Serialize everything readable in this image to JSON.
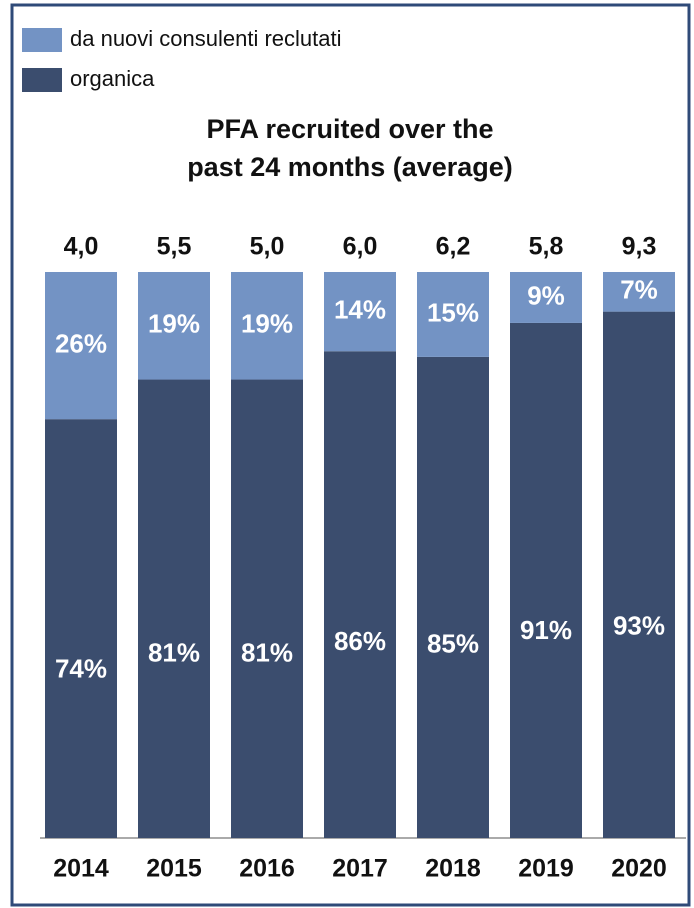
{
  "chart_data": {
    "type": "stacked_bar_100",
    "title": [
      "PFA recruited over the",
      "past 24 months (average)"
    ],
    "categories": [
      "2014",
      "2015",
      "2016",
      "2017",
      "2018",
      "2019",
      "2020"
    ],
    "total_labels": [
      "4,0",
      "5,5",
      "5,0",
      "6,0",
      "6,2",
      "5,8",
      "9,3"
    ],
    "ylim": [
      0,
      100
    ],
    "legend": "top-left",
    "series": [
      {
        "name": "organica",
        "color": "#3b4d6e",
        "values": [
          74,
          81,
          81,
          86,
          85,
          91,
          93
        ],
        "value_labels": [
          "74%",
          "81%",
          "81%",
          "86%",
          "85%",
          "91%",
          "93%"
        ]
      },
      {
        "name": "da nuovi consulenti reclutati",
        "color": "#7393c4",
        "values": [
          26,
          19,
          19,
          14,
          15,
          9,
          7
        ],
        "value_labels": [
          "26%",
          "19%",
          "19%",
          "14%",
          "15%",
          "9%",
          "7%"
        ]
      }
    ]
  }
}
